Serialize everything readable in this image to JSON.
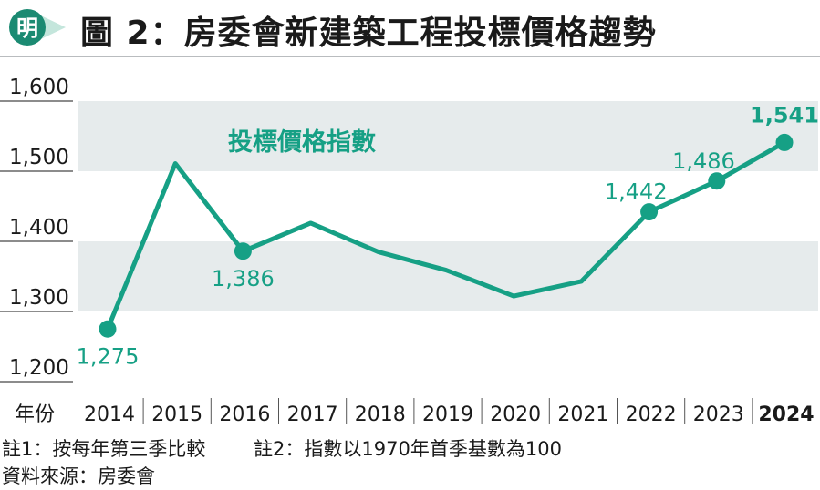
{
  "header": {
    "logo_text": "明",
    "title": "圖 2：房委會新建築工程投標價格趨勢"
  },
  "colors": {
    "accent": "#16a085",
    "band": "#e6ebec",
    "text": "#1a1a1a",
    "logo_dark": "#1b8a72",
    "logo_light": "#c4e6dc"
  },
  "chart_data": {
    "type": "line",
    "title": "投標價格指數",
    "xlabel": "年份",
    "ylabel": "",
    "categories": [
      "2014",
      "2015",
      "2016",
      "2017",
      "2018",
      "2019",
      "2020",
      "2021",
      "2022",
      "2023",
      "2024"
    ],
    "highlight_category": "2024",
    "ylim": [
      1200,
      1600
    ],
    "yticks": [
      1200,
      1300,
      1400,
      1500,
      1600
    ],
    "ytick_labels": [
      "1,200",
      "1,300",
      "1,400",
      "1,500",
      "1,600"
    ],
    "series": [
      {
        "name": "投標價格指數",
        "values": [
          1275,
          1511,
          1386,
          1426,
          1385,
          1359,
          1322,
          1343,
          1442,
          1486,
          1541
        ]
      }
    ],
    "data_labels": [
      {
        "index": 0,
        "text": "1,275",
        "position": "below"
      },
      {
        "index": 2,
        "text": "1,386",
        "position": "below"
      },
      {
        "index": 8,
        "text": "1,442",
        "position": "above-left"
      },
      {
        "index": 9,
        "text": "1,486",
        "position": "above-left"
      },
      {
        "index": 10,
        "text": "1,541",
        "position": "above",
        "bold": true
      }
    ],
    "grid_bands": [
      [
        1300,
        1400
      ],
      [
        1500,
        1600
      ]
    ]
  },
  "footnotes": {
    "note1": "註1：按每年第三季比較",
    "note2": "註2：指數以1970年首季基數為100",
    "source": "資料來源：房委會"
  }
}
